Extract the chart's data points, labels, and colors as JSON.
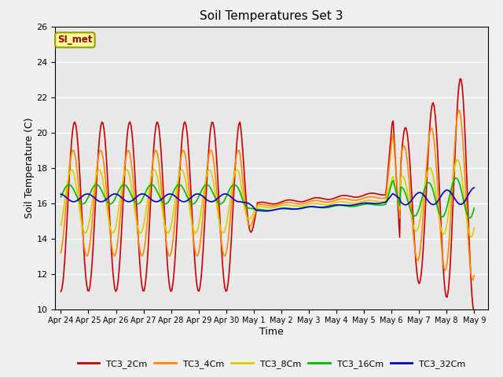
{
  "title": "Soil Temperatures Set 3",
  "xlabel": "Time",
  "ylabel": "Soil Temperature (C)",
  "ylim": [
    10,
    26
  ],
  "yticks": [
    10,
    12,
    14,
    16,
    18,
    20,
    22,
    24,
    26
  ],
  "plot_bg": "#e8e8e8",
  "fig_bg": "#f0f0f0",
  "annotation_text": "SI_met",
  "annotation_color": "#aa0000",
  "annotation_bg": "#ffff99",
  "annotation_border": "#999900",
  "series_colors": {
    "TC3_2Cm": "#cc0000",
    "TC3_4Cm": "#ff8800",
    "TC3_8Cm": "#ddcc00",
    "TC3_16Cm": "#00bb00",
    "TC3_32Cm": "#0000cc"
  },
  "tick_labels": [
    "Apr 24",
    "Apr 25",
    "Apr 26",
    "Apr 27",
    "Apr 28",
    "Apr 29",
    "Apr 30",
    "May 1",
    "May 2",
    "May 3",
    "May 4",
    "May 5",
    "May 6",
    "May 7",
    "May 8",
    "May 9"
  ],
  "grid_color": "#ffffff",
  "lw": 1.2
}
